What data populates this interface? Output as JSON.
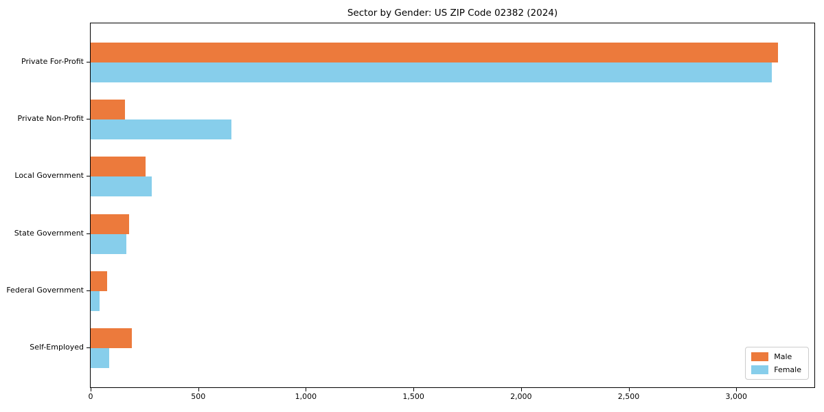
{
  "title": "Sector by Gender: US ZIP Code 02382 (2024)",
  "colors": {
    "male": "#ec7a3c",
    "female": "#87ceeb",
    "spine": "#000000",
    "legend_border": "#cccccc",
    "background": "#ffffff"
  },
  "legend": {
    "position": "lower right",
    "entries": [
      "Male",
      "Female"
    ]
  },
  "chart_data": {
    "type": "bar",
    "orientation": "horizontal",
    "title": "Sector by Gender: US ZIP Code 02382 (2024)",
    "categories": [
      "Private For-Profit",
      "Private Non-Profit",
      "Local Government",
      "State Government",
      "Federal Government",
      "Self-Employed"
    ],
    "series": [
      {
        "name": "Male",
        "color": "#ec7a3c",
        "values": [
          3195,
          160,
          255,
          180,
          75,
          190
        ]
      },
      {
        "name": "Female",
        "color": "#87ceeb",
        "values": [
          3165,
          655,
          285,
          165,
          40,
          85
        ]
      }
    ],
    "xlabel": "",
    "ylabel": "",
    "xlim": [
      0,
      3363
    ],
    "xticks": [
      0,
      500,
      1000,
      1500,
      2000,
      2500,
      3000
    ],
    "xtick_labels": [
      "0",
      "500",
      "1,000",
      "1,500",
      "2,000",
      "2,500",
      "3,000"
    ],
    "grid": false,
    "legend_position": "lower right"
  }
}
